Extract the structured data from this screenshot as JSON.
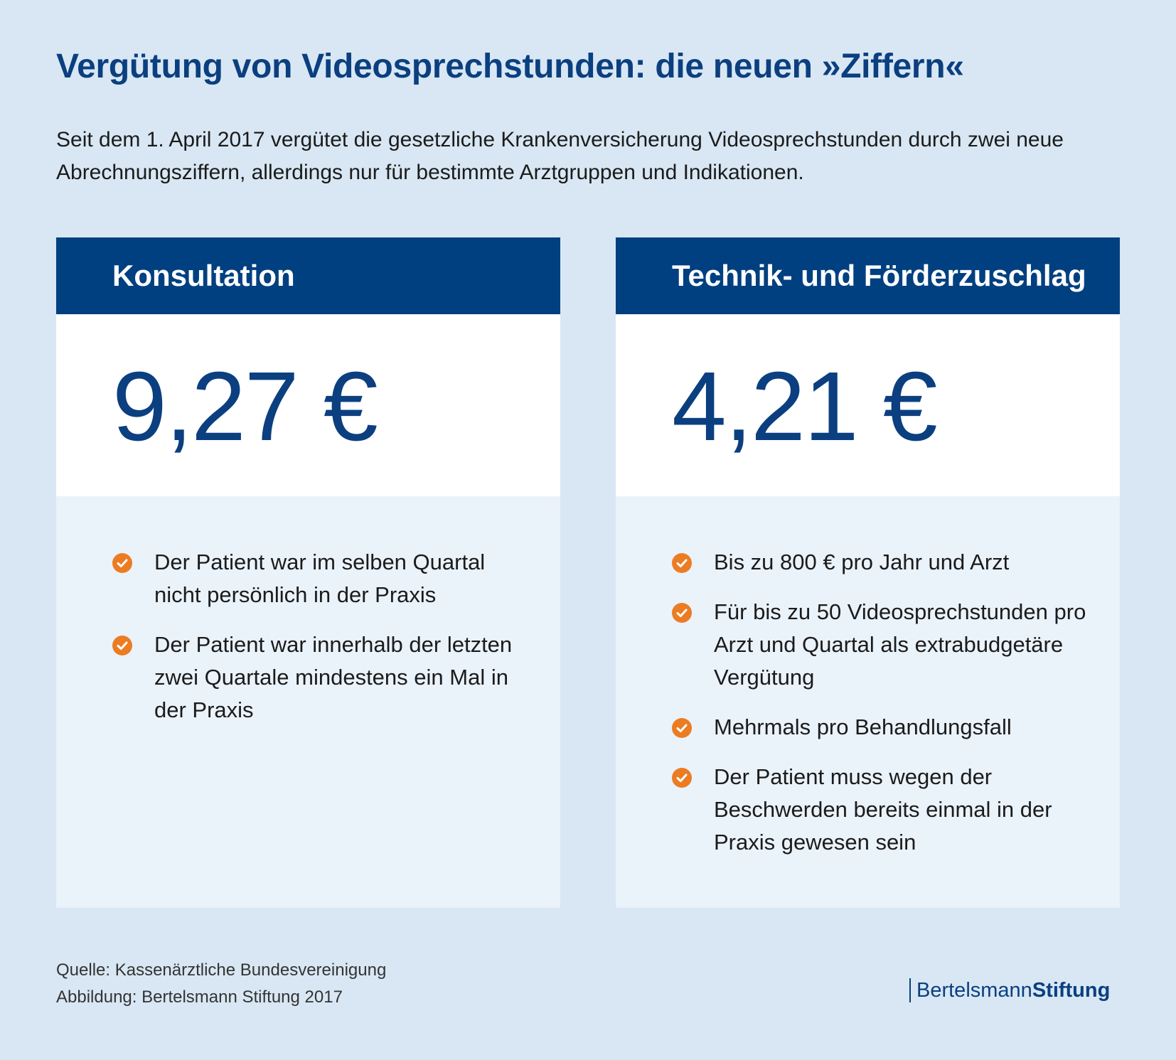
{
  "title": "Vergütung von Videosprechstunden: die neuen »Ziffern«",
  "intro": "Seit dem 1. April 2017 vergütet die gesetzliche Krankenversicherung Videosprechstunden durch zwei neue Abrechnungsziffern, allerdings nur für bestimmte Arztgruppen und Indikationen.",
  "cards": [
    {
      "header": "Konsultation",
      "value": "9,27 €",
      "items": [
        "Der Patient war im selben Quartal nicht persönlich in der Praxis",
        "Der Patient war innerhalb der letzten zwei Quartale mindestens ein Mal in der Praxis"
      ]
    },
    {
      "header": "Technik- und Förderzuschlag",
      "value": "4,21 €",
      "items": [
        "Bis zu 800 € pro Jahr und Arzt",
        "Für bis zu 50 Videosprechstunden pro Arzt und Quartal als extrabudgetäre Vergütung",
        "Mehrmals pro Behandlungsfall",
        "Der Patient muss wegen der Beschwerden bereits einmal in der Praxis gewesen sein"
      ]
    }
  ],
  "footer": {
    "source": "Quelle: Kassenärztliche Bundesvereinigung",
    "credit": "Abbildung: Bertelsmann Stiftung 2017",
    "logo_part1": "Bertelsmann",
    "logo_part2": "Stiftung"
  },
  "colors": {
    "background": "#d8e7f3",
    "accent_blue": "#004080",
    "check_orange": "#ec7c22"
  },
  "icons": {
    "bullet": "check-circle-icon"
  }
}
